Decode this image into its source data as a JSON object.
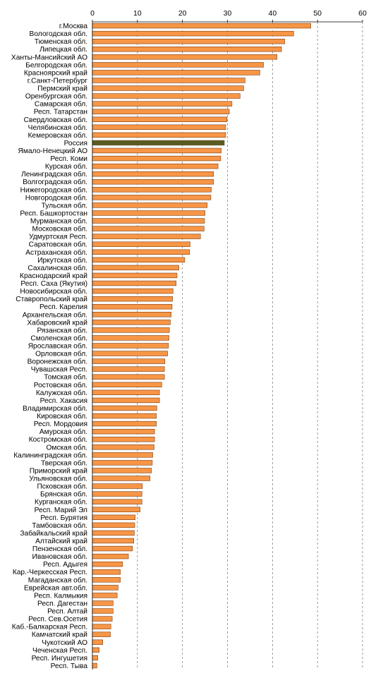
{
  "chart_data": {
    "type": "bar",
    "orientation": "horizontal",
    "title": "",
    "xlabel": "",
    "ylabel": "",
    "xlim": [
      0,
      60
    ],
    "x_ticks": [
      "0",
      "10",
      "20",
      "30",
      "40",
      "50",
      "60"
    ],
    "x_axis_position": "top",
    "grid": "vertical dashed",
    "legend": "none",
    "colors": {
      "bar": "#f79646",
      "highlight": "#5a5a25",
      "outline": "#7a3a10",
      "grid": "#808080"
    },
    "highlight_category": "Россия",
    "categories": [
      "г.Москва",
      "Вологодская обл.",
      "Тюменская обл.",
      "Липецкая обл.",
      "Ханты-Мансийский АО",
      "Белгородская обл.",
      "Красноярский край",
      "г.Санкт-Петербург",
      "Пермский край",
      "Оренбургская обл.",
      "Самарская обл.",
      "Респ. Татарстан",
      "Свердловская обл.",
      "Челябинская обл.",
      "Кемеровская обл.",
      "Россия",
      "Ямало-Ненецкий АО",
      "Респ. Коми",
      "Курская обл.",
      "Ленинградская обл.",
      "Волгоградская обл.",
      "Нижегородская обл.",
      "Новгородская обл.",
      "Тульская обл.",
      "Респ. Башкортостан",
      "Мурманская обл.",
      "Московская обл.",
      "Удмуртская Респ.",
      "Саратовская обл.",
      "Астраханская обл.",
      "Иркутская обл.",
      "Сахалинская обл.",
      "Краснодарский край",
      "Респ. Саха (Якутия)",
      "Новосибирская обл.",
      "Ставропольский край",
      "Респ. Карелия",
      "Архангельская обл.",
      "Хабаровский край",
      "Рязанская обл.",
      "Смоленская обл.",
      "Ярославская обл.",
      "Орловская обл.",
      "Воронежская обл.",
      "Чувашская Респ.",
      "Томская обл.",
      "Ростовская обл.",
      "Калужская обл.",
      "Респ. Хакасия",
      "Владимирская обл.",
      "Кировская обл.",
      "Респ. Мордовия",
      "Амурская обл.",
      "Костромская обл.",
      "Омская обл.",
      "Калининградская обл.",
      "Тверская обл.",
      "Приморский край",
      "Ульяновская обл.",
      "Псковская обл.",
      "Брянская обл.",
      "Курганская обл.",
      "Респ. Марий Эл",
      "Респ. Бурятия",
      "Тамбовская обл.",
      "Забайкальский край",
      "Алтайский край",
      "Пензенская обл.",
      "Ивановская обл.",
      "Респ. Адыгея",
      "Кар.-Черкесская Респ.",
      "Магаданская обл.",
      "Еврейская авт.обл.",
      "Респ. Калмыкия",
      "Респ. Дагестан",
      "Респ. Алтай",
      "Респ. Сев.Осетия",
      "Каб.-Балкарская Респ.",
      "Камчатский край",
      "Чукотский АО",
      "Чеченская Респ.",
      "Респ. Ингушетия",
      "Респ. Тыва"
    ],
    "values": [
      48.5,
      44.7,
      42.7,
      42.0,
      41.0,
      38.0,
      37.2,
      33.9,
      33.6,
      32.8,
      31.0,
      30.4,
      29.9,
      29.6,
      29.6,
      29.3,
      28.6,
      28.5,
      27.9,
      26.9,
      26.9,
      26.4,
      26.3,
      25.5,
      25.0,
      24.9,
      24.8,
      24.0,
      21.7,
      21.6,
      20.5,
      19.2,
      18.8,
      18.6,
      17.9,
      17.8,
      17.7,
      17.5,
      17.3,
      17.1,
      17.0,
      16.9,
      16.7,
      16.1,
      16.0,
      16.0,
      15.4,
      14.9,
      14.9,
      14.3,
      14.2,
      14.2,
      13.8,
      13.8,
      13.7,
      13.4,
      13.3,
      13.1,
      12.8,
      11.1,
      11.0,
      11.0,
      10.6,
      9.5,
      9.4,
      9.3,
      9.2,
      8.9,
      8.0,
      6.7,
      6.2,
      6.2,
      5.7,
      5.5,
      4.6,
      4.6,
      4.4,
      4.1,
      4.0,
      2.3,
      1.5,
      1.2,
      1.0
    ]
  }
}
